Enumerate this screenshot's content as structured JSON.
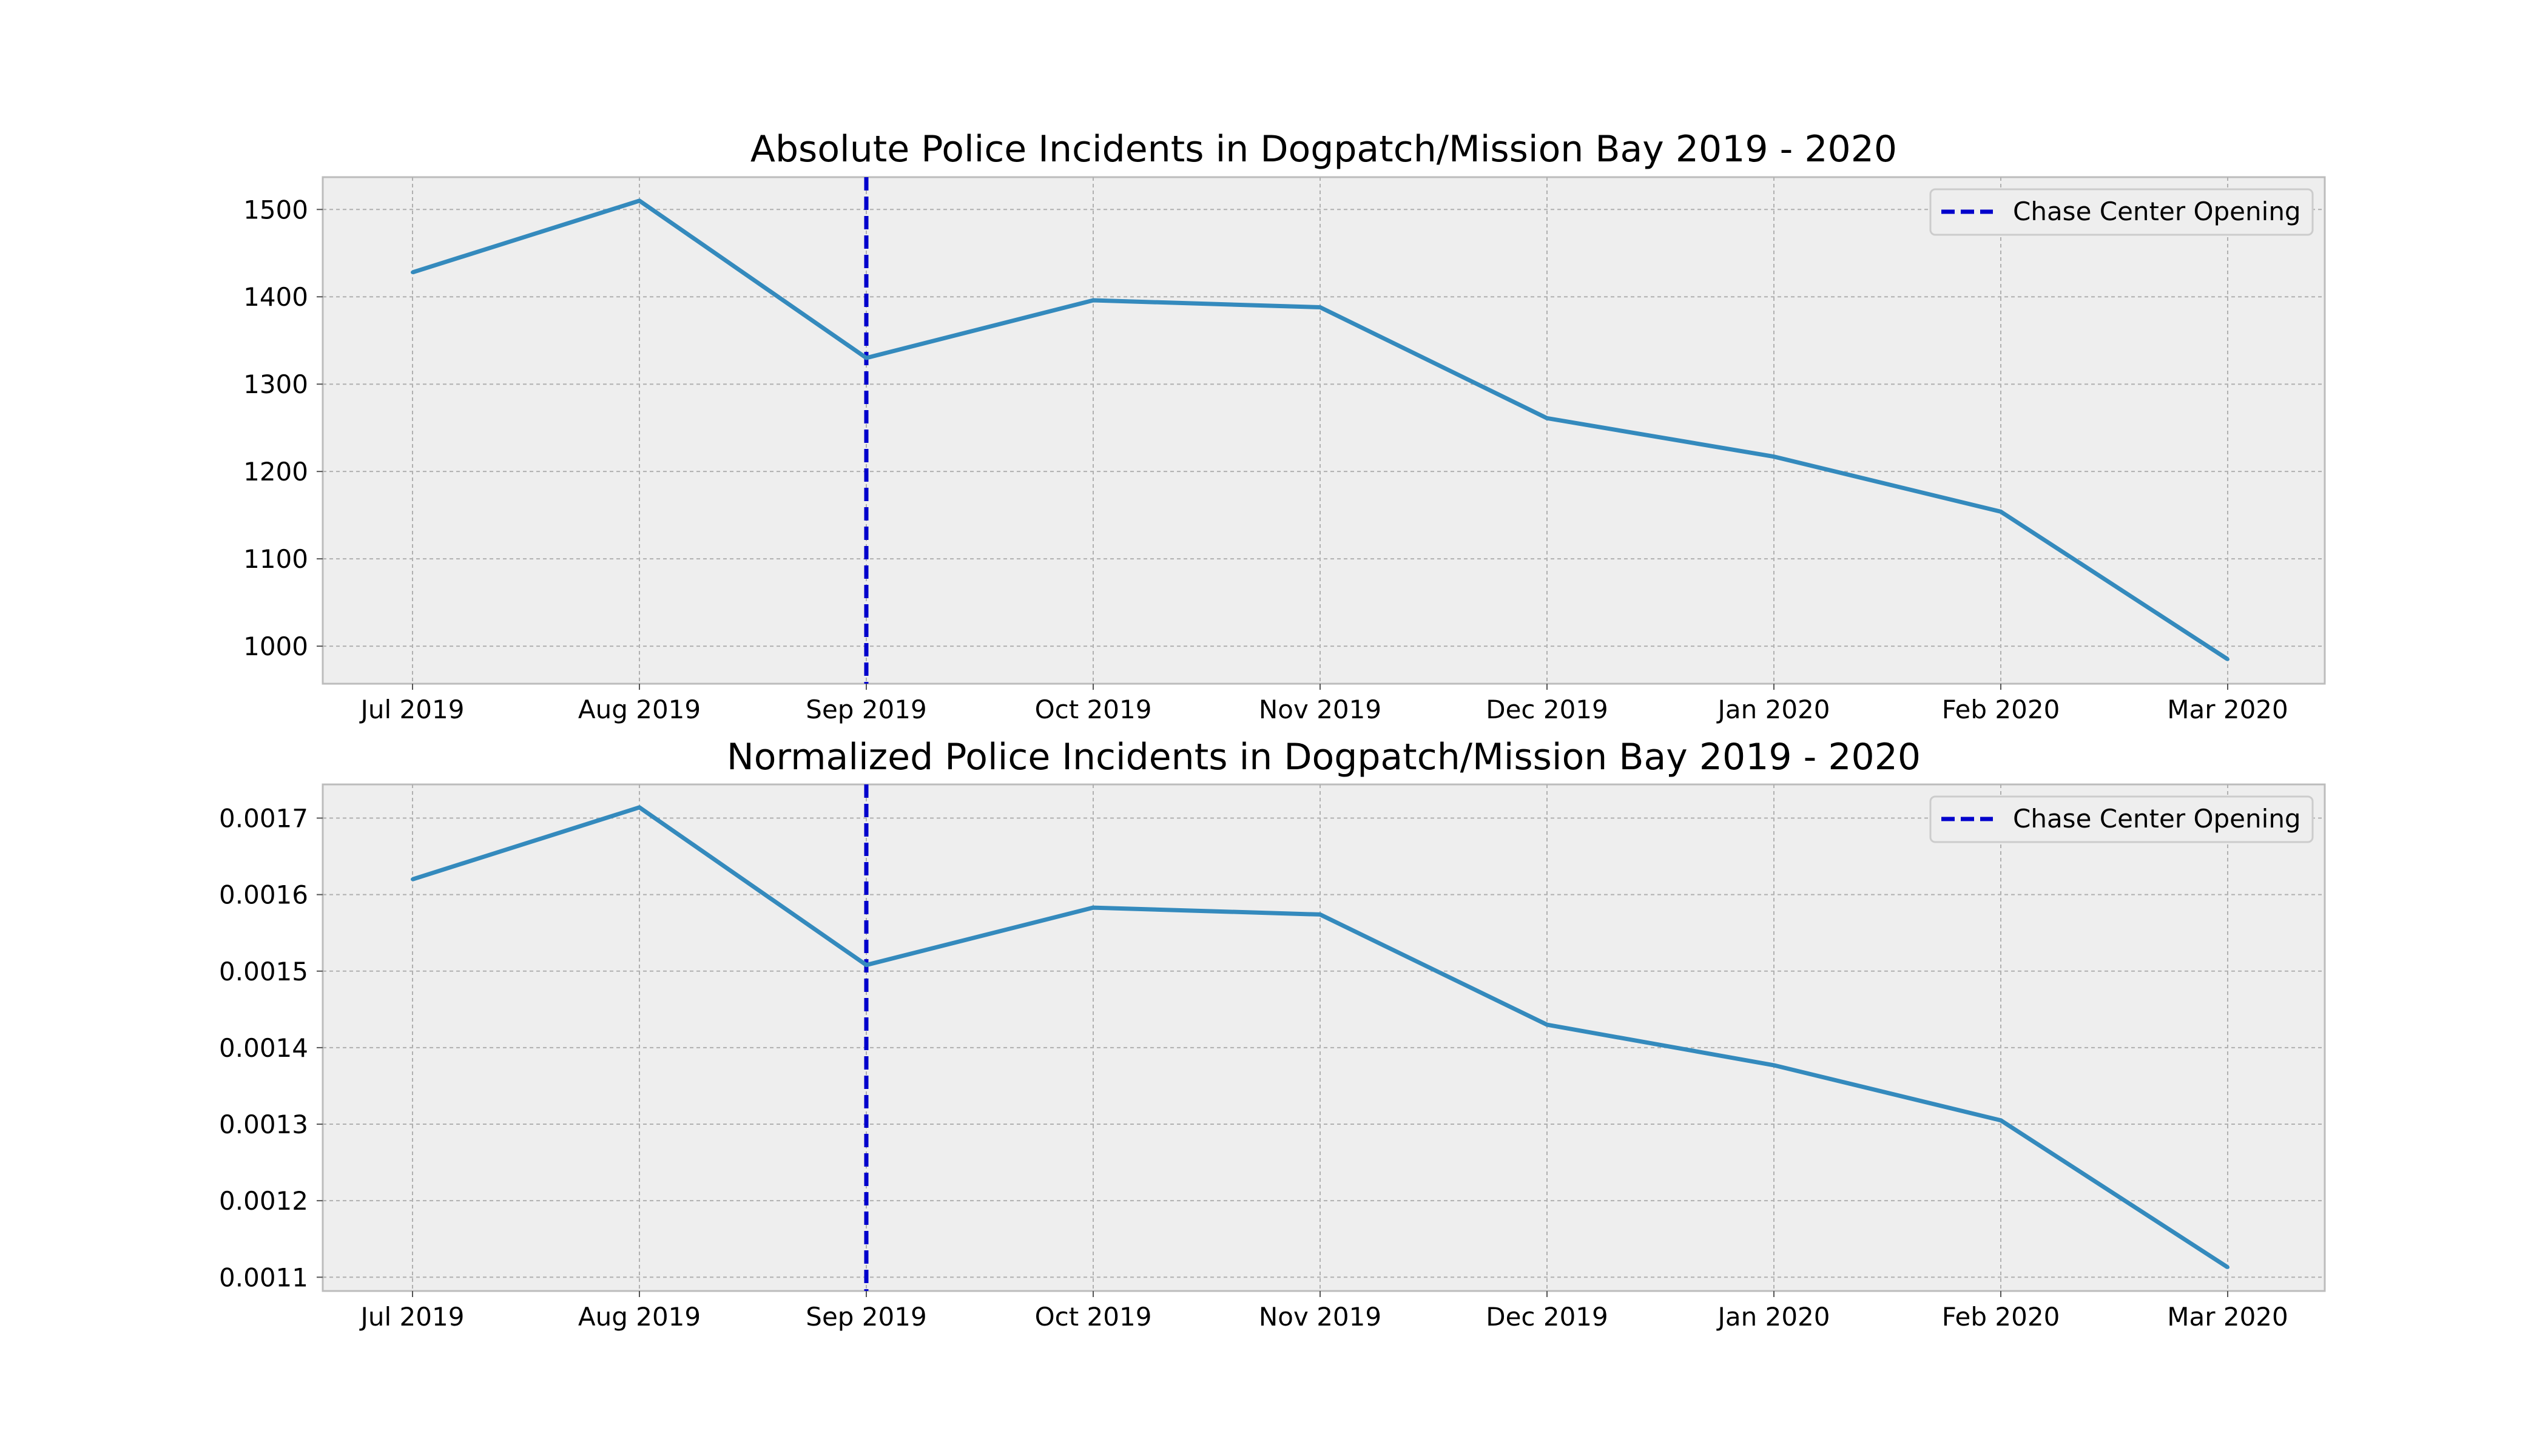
{
  "chart_data": [
    {
      "type": "line",
      "title": "Absolute Police Incidents in Dogpatch/Mission Bay 2019 - 2020",
      "xlabel": "",
      "ylabel": "",
      "categories": [
        "Jul 2019",
        "Aug 2019",
        "Sep 2019",
        "Oct 2019",
        "Nov 2019",
        "Dec 2019",
        "Jan 2020",
        "Feb 2020",
        "Mar 2020"
      ],
      "series": [
        {
          "values": [
            1428,
            1510,
            1330,
            1396,
            1388,
            1261,
            1217,
            1154,
            985
          ],
          "color": "#348abd"
        }
      ],
      "yticks": [
        1000,
        1100,
        1200,
        1300,
        1400,
        1500
      ],
      "ytick_labels": [
        "1000",
        "1100",
        "1200",
        "1300",
        "1400",
        "1500"
      ],
      "ylim": [
        957,
        1537
      ],
      "grid": true,
      "legend": {
        "position": "top-right",
        "entries": [
          {
            "label": "Chase Center Opening",
            "color": "#0000cc",
            "style": "dashed"
          }
        ]
      },
      "annotations": [
        {
          "type": "vertical-line",
          "x": "Sep 2019",
          "label": "Chase Center Opening",
          "color": "#0000cc",
          "style": "dashed"
        }
      ]
    },
    {
      "type": "line",
      "title": "Normalized Police Incidents in Dogpatch/Mission Bay 2019 - 2020",
      "xlabel": "",
      "ylabel": "",
      "categories": [
        "Jul 2019",
        "Aug 2019",
        "Sep 2019",
        "Oct 2019",
        "Nov 2019",
        "Dec 2019",
        "Jan 2020",
        "Feb 2020",
        "Mar 2020"
      ],
      "series": [
        {
          "values": [
            0.00162,
            0.001714,
            0.001508,
            0.001583,
            0.001574,
            0.00143,
            0.001377,
            0.001305,
            0.001113
          ],
          "color": "#348abd"
        }
      ],
      "yticks": [
        0.0011,
        0.0012,
        0.0013,
        0.0014,
        0.0015,
        0.0016,
        0.0017
      ],
      "ytick_labels": [
        "0.0011",
        "0.0012",
        "0.0013",
        "0.0014",
        "0.0015",
        "0.0016",
        "0.0017"
      ],
      "ylim": [
        0.001082,
        0.001744
      ],
      "grid": true,
      "legend": {
        "position": "top-right",
        "entries": [
          {
            "label": "Chase Center Opening",
            "color": "#0000cc",
            "style": "dashed"
          }
        ]
      },
      "annotations": [
        {
          "type": "vertical-line",
          "x": "Sep 2019",
          "label": "Chase Center Opening",
          "color": "#0000cc",
          "style": "dashed"
        }
      ]
    }
  ]
}
